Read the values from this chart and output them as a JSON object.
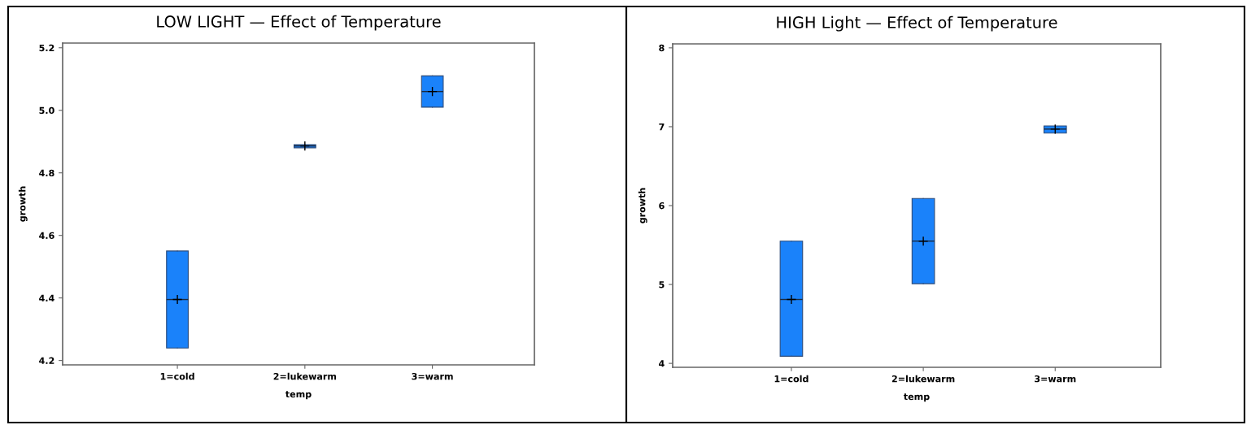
{
  "chart_data": [
    {
      "type": "box",
      "title": "LOW LIGHT — Effect of Temperature",
      "xlabel": "temp",
      "ylabel": "growth",
      "categories": [
        "1=cold",
        "2=lukewarm",
        "3=warm"
      ],
      "ylim": [
        4.186,
        5.215
      ],
      "yticks": [
        {
          "value": 4.2,
          "label": "4.2"
        },
        {
          "value": 4.4,
          "label": "4.4"
        },
        {
          "value": 4.6,
          "label": "4.6"
        },
        {
          "value": 4.8,
          "label": "4.8"
        },
        {
          "value": 5.0,
          "label": "5.0"
        },
        {
          "value": 5.2,
          "label": "5.2"
        }
      ],
      "color": "#1a82fa",
      "grid": false,
      "marker": "cross",
      "boxes": [
        {
          "low": 4.24,
          "q1": 4.24,
          "median": 4.395,
          "q3": 4.55,
          "high": 4.55,
          "mean": 4.395
        },
        {
          "low": 4.88,
          "q1": 4.88,
          "median": 4.886,
          "q3": 4.89,
          "high": 4.89,
          "mean": 4.886
        },
        {
          "low": 5.01,
          "q1": 5.01,
          "median": 5.06,
          "q3": 5.11,
          "high": 5.11,
          "mean": 5.06
        }
      ]
    },
    {
      "type": "box",
      "title": "HIGH Light — Effect of Temperature",
      "xlabel": "temp",
      "ylabel": "growth",
      "categories": [
        "1=cold",
        "2=lukewarm",
        "3=warm"
      ],
      "ylim": [
        3.95,
        8.05
      ],
      "yticks": [
        4,
        5,
        6,
        7,
        8
      ],
      "color": "#1a82fa",
      "grid": false,
      "marker": "cross",
      "boxes": [
        {
          "low": 4.09,
          "q1": 4.09,
          "median": 4.81,
          "q3": 5.55,
          "high": 5.55,
          "mean": 4.81
        },
        {
          "low": 5.01,
          "q1": 5.01,
          "median": 5.55,
          "q3": 6.09,
          "high": 6.09,
          "mean": 5.55
        },
        {
          "low": 6.92,
          "q1": 6.92,
          "median": 6.97,
          "q3": 7.01,
          "high": 7.01,
          "mean": 6.97
        }
      ]
    }
  ]
}
